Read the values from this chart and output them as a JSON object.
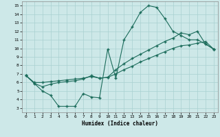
{
  "line1_x": [
    0,
    1,
    2,
    3,
    4,
    5,
    6,
    7,
    8,
    9,
    10,
    11,
    12,
    13,
    14,
    15,
    16,
    17,
    18,
    19,
    20,
    21,
    22,
    23
  ],
  "line1_y": [
    6.8,
    5.9,
    5.0,
    4.5,
    3.2,
    3.2,
    3.2,
    4.7,
    4.3,
    4.2,
    9.9,
    6.5,
    11.0,
    12.5,
    14.2,
    15.0,
    14.8,
    13.5,
    12.0,
    11.5,
    11.0,
    11.0,
    10.5,
    9.9
  ],
  "line2_x": [
    0,
    1,
    2,
    3,
    4,
    5,
    6,
    7,
    8,
    9,
    10,
    11,
    12,
    13,
    14,
    15,
    16,
    17,
    18,
    19,
    20,
    21,
    22,
    23
  ],
  "line2_y": [
    6.8,
    6.0,
    6.0,
    6.1,
    6.2,
    6.3,
    6.4,
    6.5,
    6.7,
    6.5,
    6.6,
    7.0,
    7.5,
    7.9,
    8.4,
    8.8,
    9.2,
    9.6,
    10.0,
    10.3,
    10.4,
    10.6,
    10.8,
    9.9
  ],
  "line3_x": [
    0,
    1,
    2,
    3,
    4,
    5,
    6,
    7,
    8,
    9,
    10,
    11,
    12,
    13,
    14,
    15,
    16,
    17,
    18,
    19,
    20,
    21,
    22,
    23
  ],
  "line3_y": [
    6.8,
    5.9,
    5.5,
    5.8,
    6.0,
    6.1,
    6.2,
    6.4,
    6.8,
    6.5,
    6.6,
    7.5,
    8.2,
    8.8,
    9.3,
    9.8,
    10.3,
    10.8,
    11.2,
    11.8,
    11.6,
    12.0,
    10.5,
    9.9
  ],
  "line_color": "#1a6b5a",
  "bg_color": "#cde8e8",
  "grid_color": "#a8d0d0",
  "xlabel": "Humidex (Indice chaleur)",
  "xlim": [
    -0.5,
    23.5
  ],
  "ylim": [
    2.5,
    15.5
  ],
  "xticks": [
    0,
    1,
    2,
    3,
    4,
    5,
    6,
    7,
    8,
    9,
    10,
    11,
    12,
    13,
    14,
    15,
    16,
    17,
    18,
    19,
    20,
    21,
    22,
    23
  ],
  "yticks": [
    3,
    4,
    5,
    6,
    7,
    8,
    9,
    10,
    11,
    12,
    13,
    14,
    15
  ],
  "marker": "+"
}
